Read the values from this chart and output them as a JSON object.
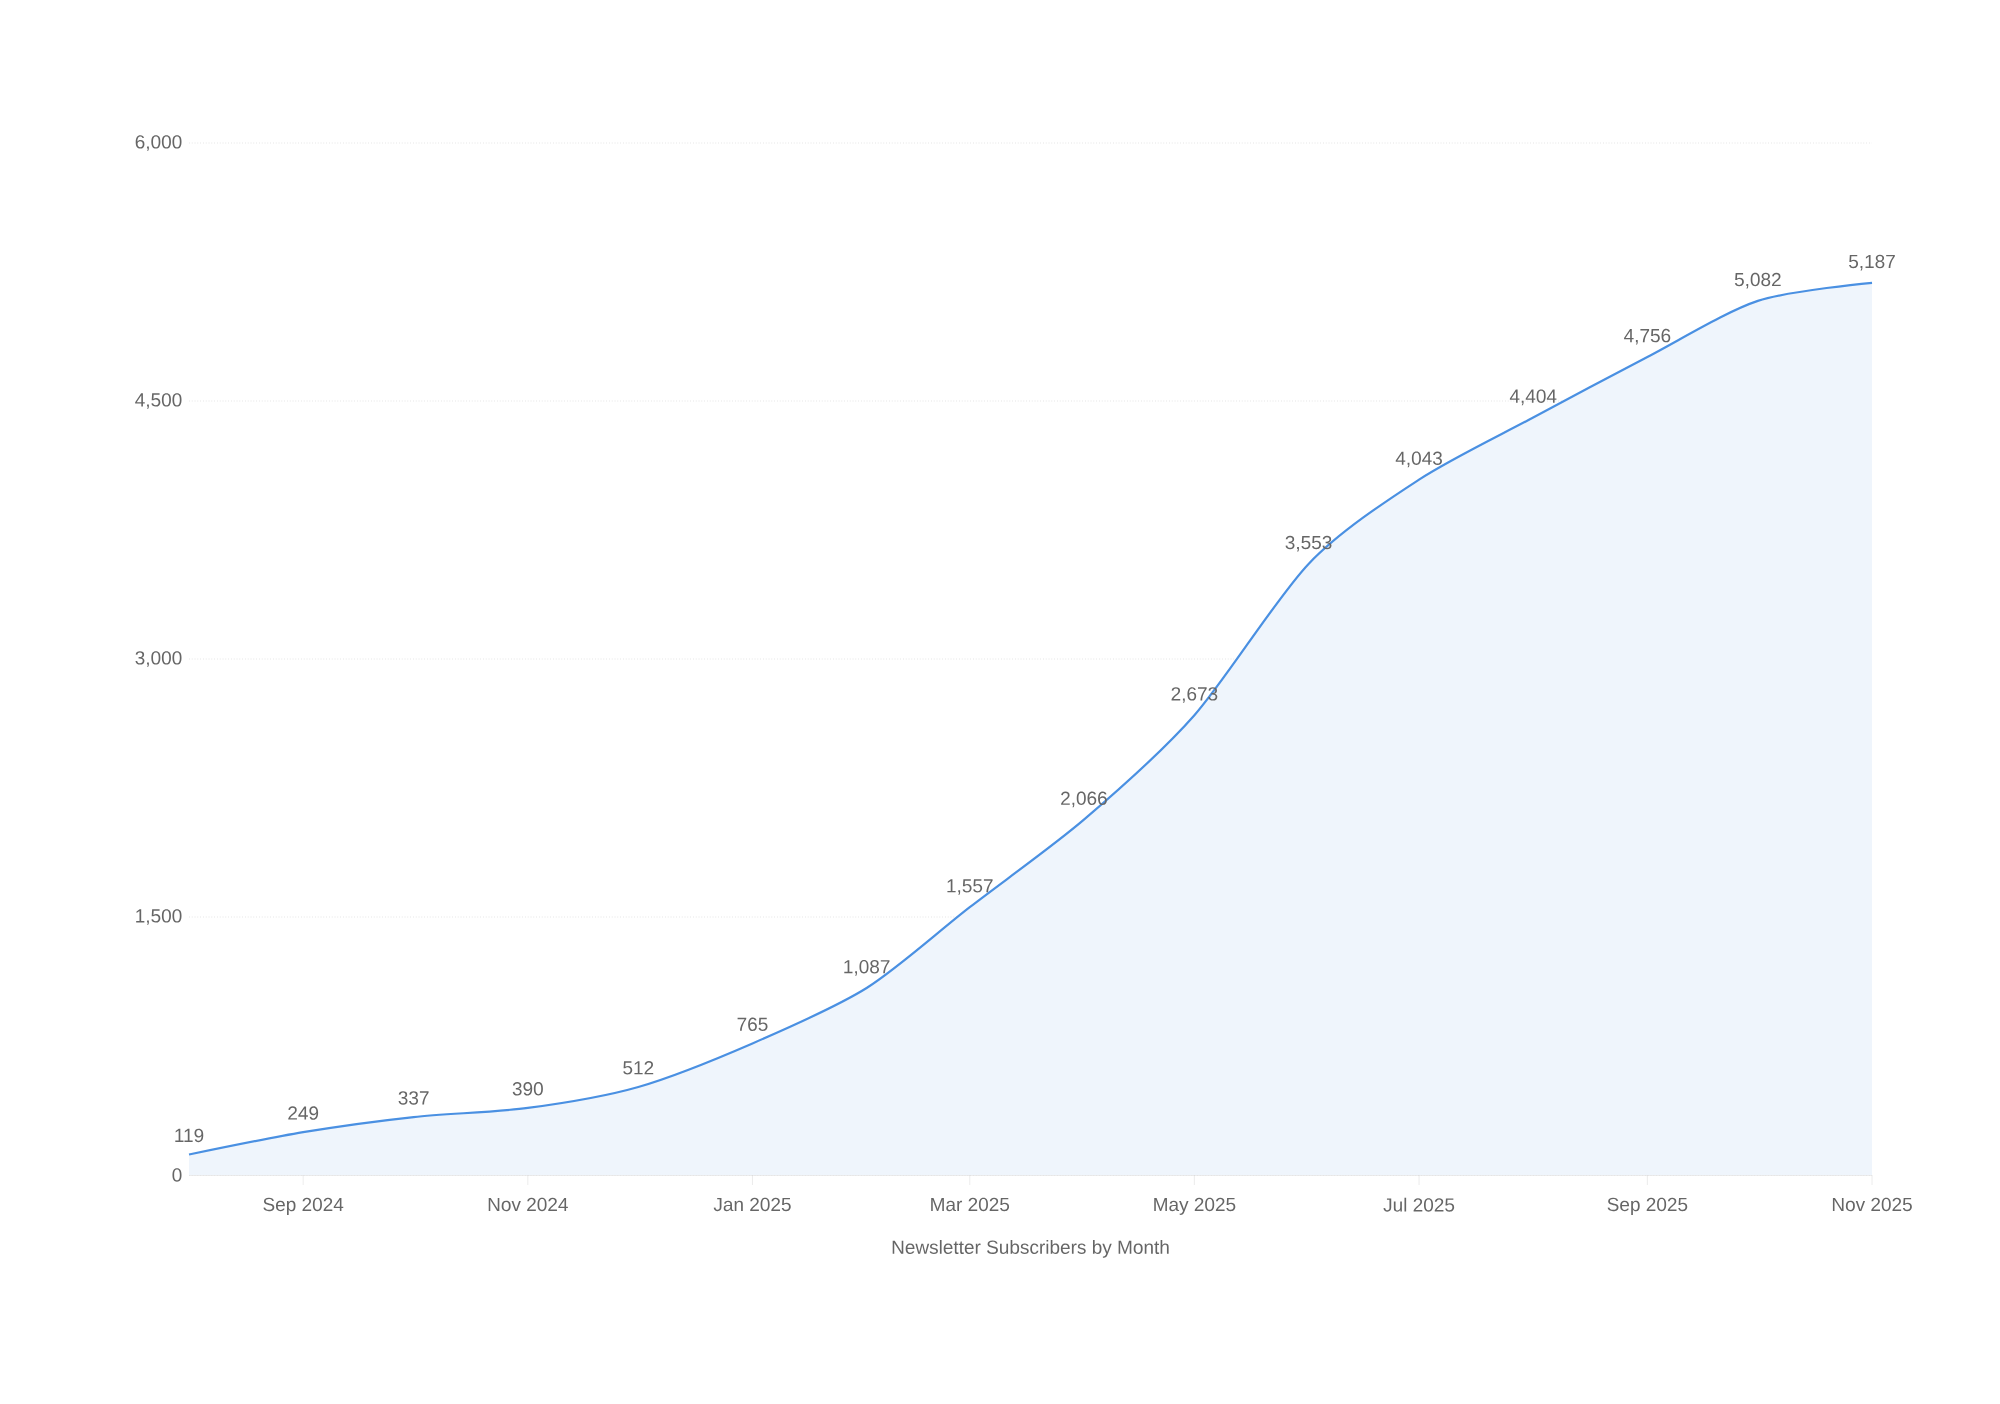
{
  "chart_data": {
    "type": "area",
    "xlabel": "Newsletter Subscribers by Month",
    "x": [
      "2024-08",
      "2024-09",
      "2024-10",
      "2024-11",
      "2024-12",
      "2025-01",
      "2025-02",
      "2025-03",
      "2025-04",
      "2025-05",
      "2025-06",
      "2025-07",
      "2025-08",
      "2025-09",
      "2025-10",
      "2025-11"
    ],
    "series": [
      {
        "color": "#4a90e2",
        "values": [
          119,
          249,
          337,
          390,
          512,
          765,
          1087,
          1557,
          2066,
          2673,
          3553,
          4043,
          4404,
          4756,
          5082,
          5187
        ],
        "value_labels": [
          "119",
          "249",
          "337",
          "390",
          "512",
          "765",
          "1,087",
          "1,557",
          "2,066",
          "2,673",
          "3,553",
          "4,043",
          "4,404",
          "4,756",
          "5,082",
          "5,187"
        ]
      }
    ],
    "xlim": [
      "2024-08",
      "2025-11"
    ],
    "xticks": [
      {
        "value": "2024-09",
        "label": "Sep 2024"
      },
      {
        "value": "2024-11",
        "label": "Nov 2024"
      },
      {
        "value": "2025-01",
        "label": "Jan 2025"
      },
      {
        "value": "2025-03",
        "label": "Mar 2025"
      },
      {
        "value": "2025-05",
        "label": "May 2025"
      },
      {
        "value": "2025-07",
        "label": "Jul 2025"
      },
      {
        "value": "2025-09",
        "label": "Sep 2025"
      },
      {
        "value": "2025-11",
        "label": "Nov 2025"
      }
    ],
    "ylim": [
      0,
      6000
    ],
    "yticks": [
      0,
      {
        "value": 1500,
        "label": "1,500"
      },
      {
        "value": 3000,
        "label": "3,000"
      },
      {
        "value": 4500,
        "label": "4,500"
      },
      {
        "value": 6000,
        "label": "6,000"
      }
    ],
    "grid": "y"
  }
}
